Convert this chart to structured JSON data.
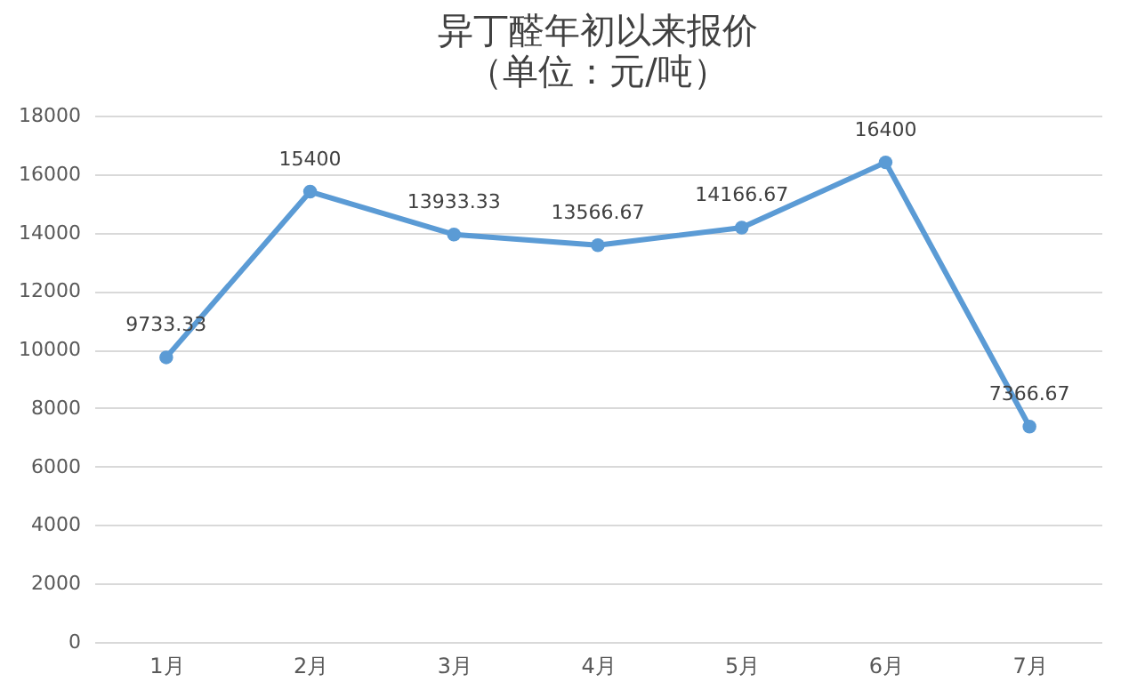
{
  "chart_data": {
    "type": "line",
    "title": "异丁醛年初以来报价",
    "subtitle": "（单位：元/吨）",
    "categories": [
      "1月",
      "2月",
      "3月",
      "4月",
      "5月",
      "6月",
      "7月"
    ],
    "series": [
      {
        "color": "#5b9bd5",
        "values": [
          9733.33,
          15400,
          13933.33,
          13566.67,
          14166.67,
          16400,
          7366.67
        ]
      }
    ],
    "ylim": [
      0,
      18000
    ],
    "yticks": [
      0,
      2000,
      4000,
      6000,
      8000,
      10000,
      12000,
      14000,
      16000,
      18000
    ],
    "grid": "y",
    "marker": "circle",
    "line_style": "solid",
    "data_labels": true
  }
}
